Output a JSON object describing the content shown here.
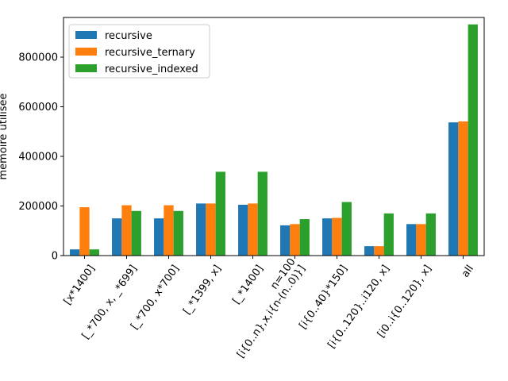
{
  "chart_data": {
    "type": "bar",
    "title": "",
    "xlabel": "",
    "ylabel": "mémoire utilisée",
    "ylim": [
      0,
      960000
    ],
    "yticks": [
      0,
      200000,
      400000,
      600000,
      800000
    ],
    "ytick_labels": [
      "0",
      "200000",
      "400000",
      "600000",
      "800000"
    ],
    "categories": [
      "[x*1400]",
      "[_*700, x, _*699]",
      "[_*700, x*700]",
      "[_*1399, x]",
      "[_*1400]",
      "n=100\n[i{0..n},x,i{n-(n..0)}]",
      "[i{0..40}*150]",
      "[i{0..120}..i120, x]",
      "[i0..i{0..120}, x]",
      "all"
    ],
    "series": [
      {
        "name": "recursive",
        "color": "#1f77b4",
        "values": [
          25000,
          150000,
          150000,
          210000,
          205000,
          122000,
          150000,
          38000,
          127000,
          537000
        ]
      },
      {
        "name": "recursive_ternary",
        "color": "#ff7f0e",
        "values": [
          195000,
          203000,
          203000,
          210000,
          210000,
          127000,
          152000,
          38000,
          127000,
          541000
        ]
      },
      {
        "name": "recursive_indexed",
        "color": "#2ca02c",
        "values": [
          25000,
          180000,
          180000,
          338000,
          338000,
          147000,
          216000,
          170000,
          170000,
          932000
        ]
      }
    ],
    "legend": "top-left",
    "grid": false
  }
}
